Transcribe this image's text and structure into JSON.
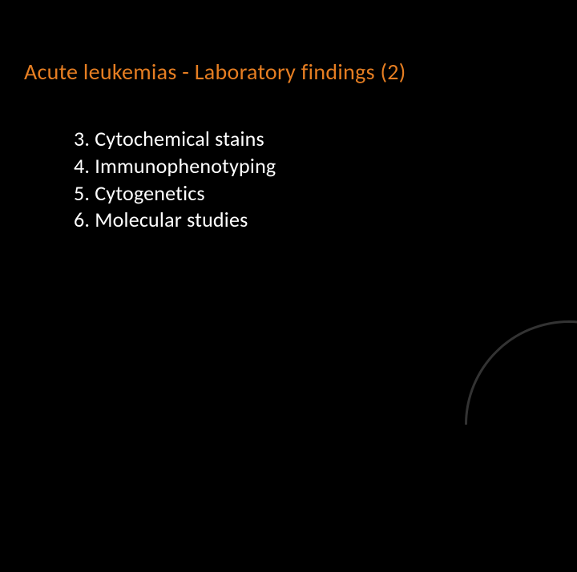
{
  "slide": {
    "title": "Acute leukemias - Laboratory findings (2)",
    "title_color": "#e67e22",
    "title_fontsize": 28,
    "background_color": "#000000",
    "text_color": "#ffffff",
    "body_fontsize": 26,
    "items": [
      "3. Cytochemical stains",
      "4. Immunophenotyping",
      "5. Cytogenetics",
      "6. Molecular studies"
    ],
    "decoration": {
      "type": "arc",
      "position": "bottom-right",
      "color": "#333333"
    }
  }
}
